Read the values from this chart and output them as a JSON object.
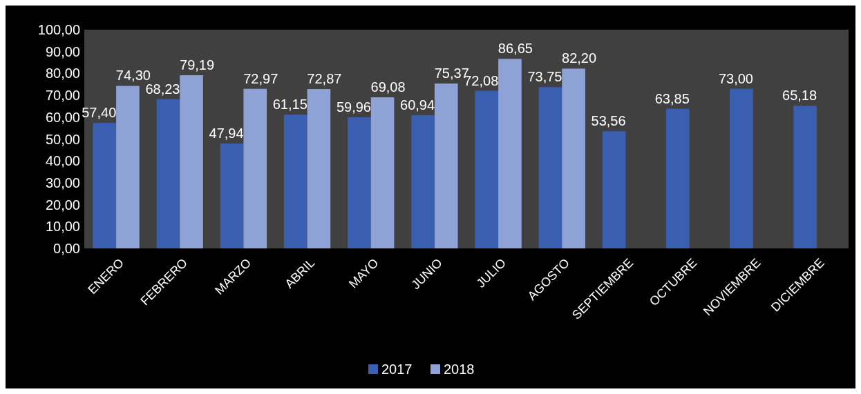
{
  "chart_data": {
    "type": "bar",
    "categories": [
      "ENERO",
      "FEBRERO",
      "MARZO",
      "ABRIL",
      "MAYO",
      "JUNIO",
      "JULIO",
      "AGOSTO",
      "SEPTIEMBRE",
      "OCTUBRE",
      "NOVIEMBRE",
      "DICIEMBRE"
    ],
    "series": [
      {
        "name": "2017",
        "color": "#3a5fb0",
        "values": [
          57.4,
          68.23,
          47.94,
          61.15,
          59.96,
          60.94,
          72.08,
          73.75,
          53.56,
          63.85,
          73.0,
          65.18
        ]
      },
      {
        "name": "2018",
        "color": "#8fa2d6",
        "values": [
          74.3,
          79.19,
          72.97,
          72.87,
          69.08,
          75.37,
          86.65,
          82.2,
          null,
          null,
          null,
          null
        ]
      }
    ],
    "ylim": [
      0,
      100
    ],
    "yticks": [
      {
        "value": 0,
        "label": "0,00"
      },
      {
        "value": 10,
        "label": "10,00"
      },
      {
        "value": 20,
        "label": "20,00"
      },
      {
        "value": 30,
        "label": "30,00"
      },
      {
        "value": 40,
        "label": "40,00"
      },
      {
        "value": 50,
        "label": "50,00"
      },
      {
        "value": 60,
        "label": "60,00"
      },
      {
        "value": 70,
        "label": "70,00"
      },
      {
        "value": 80,
        "label": "80,00"
      },
      {
        "value": 90,
        "label": "90,00"
      },
      {
        "value": 100,
        "label": "100,00"
      }
    ],
    "value_labels": [
      [
        "57,40",
        "68,23",
        "47,94",
        "61,15",
        "59,96",
        "60,94",
        "72,08",
        "73,75",
        "53,56",
        "63,85",
        "73,00",
        "65,18"
      ],
      [
        "74,30",
        "79,19",
        "72,97",
        "72,87",
        "69,08",
        "75,37",
        "86,65",
        "82,20",
        null,
        null,
        null,
        null
      ]
    ],
    "legend": "bottom",
    "grid": false
  }
}
